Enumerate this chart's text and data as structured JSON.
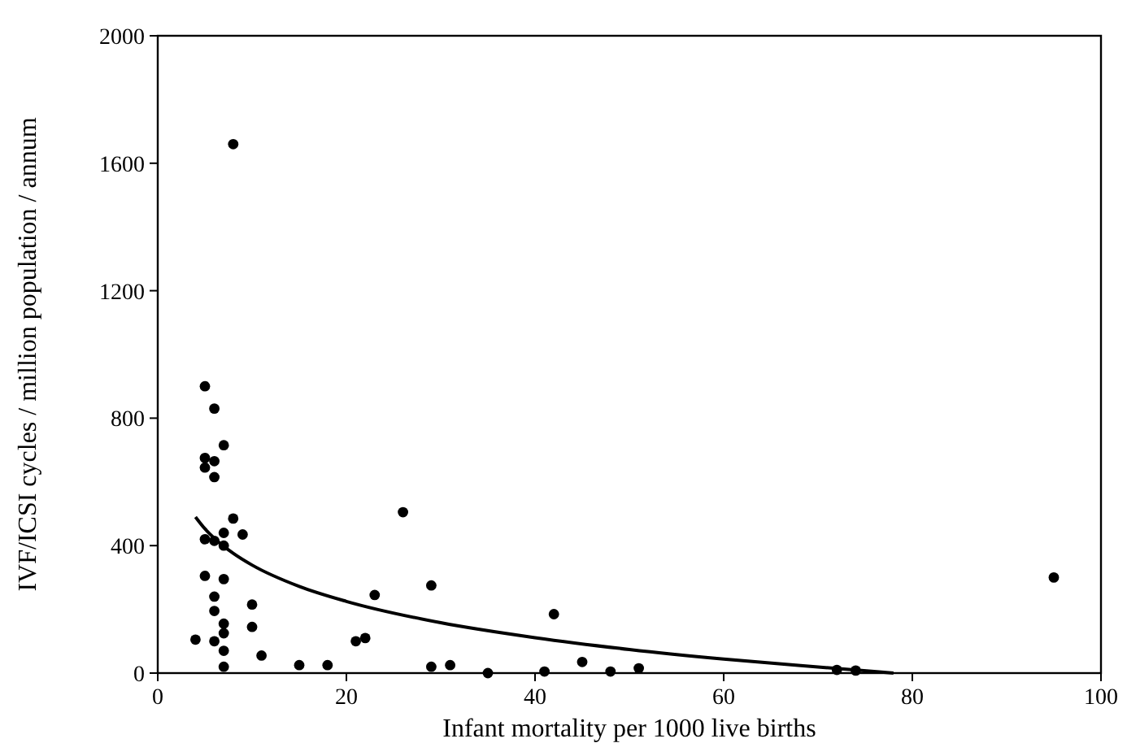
{
  "chart_data": {
    "type": "scatter",
    "xlabel": "Infant mortality per 1000 live births",
    "ylabel": "IVF/ICSI cycles / million population / annum",
    "xlim": [
      0,
      100
    ],
    "ylim": [
      0,
      2000
    ],
    "xticks": [
      0,
      20,
      40,
      60,
      80,
      100
    ],
    "yticks": [
      0,
      400,
      800,
      1200,
      1600,
      2000
    ],
    "grid": false,
    "series": [
      {
        "color": "#000000",
        "marker": "circle",
        "x": [
          5,
          6,
          7,
          5,
          6,
          5,
          6,
          8,
          8,
          7,
          9,
          5,
          6,
          7,
          5,
          7,
          6,
          6,
          10,
          10,
          7,
          7,
          4,
          6,
          7,
          11,
          7,
          15,
          18,
          26,
          29,
          23,
          21,
          22,
          29,
          31,
          35,
          42,
          41,
          45,
          48,
          51,
          72,
          74,
          95
        ],
        "values": [
          900,
          830,
          715,
          675,
          665,
          645,
          615,
          1660,
          485,
          440,
          435,
          420,
          415,
          400,
          305,
          295,
          240,
          195,
          215,
          145,
          155,
          125,
          105,
          100,
          70,
          55,
          20,
          25,
          25,
          505,
          275,
          245,
          100,
          110,
          20,
          25,
          0,
          185,
          5,
          35,
          5,
          15,
          10,
          8,
          300
        ]
      },
      {
        "type": "line",
        "color": "#000000",
        "marker": "none",
        "line_style": "solid",
        "x": [
          4,
          5,
          6,
          8,
          10,
          15,
          20,
          30,
          40,
          50,
          60,
          70,
          78
        ],
        "values": [
          490,
          453,
          423,
          376,
          339,
          272,
          225,
          158,
          111,
          74,
          44,
          19,
          0
        ]
      }
    ]
  }
}
